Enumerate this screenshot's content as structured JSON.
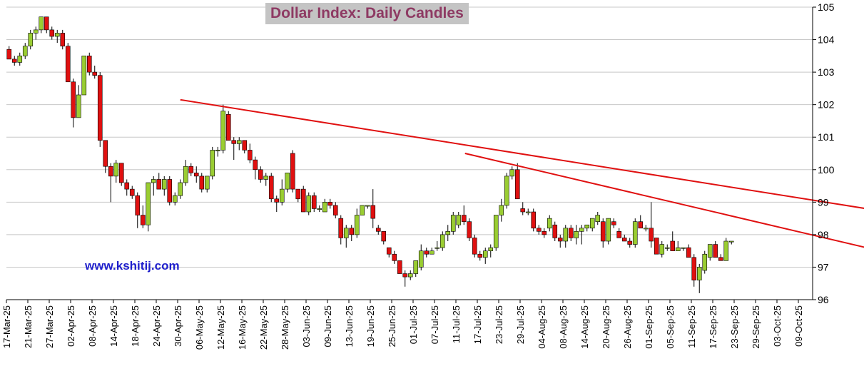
{
  "chart_data": {
    "type": "candlestick",
    "title": "Dollar Index: Daily Candles",
    "watermark": "www.kshitij.com",
    "ylim": [
      96,
      105
    ],
    "y_ticks": [
      96,
      97,
      98,
      99,
      100,
      101,
      102,
      103,
      104,
      105
    ],
    "y_axis_side": "right",
    "grid": "horizontal",
    "x_tick_labels": [
      "17-Mar-25",
      "21-Mar-25",
      "27-Mar-25",
      "02-Apr-25",
      "08-Apr-25",
      "14-Apr-25",
      "18-Apr-25",
      "24-Apr-25",
      "30-Apr-25",
      "06-May-25",
      "12-May-25",
      "16-May-25",
      "22-May-25",
      "28-May-25",
      "03-Jun-25",
      "09-Jun-25",
      "13-Jun-25",
      "19-Jun-25",
      "25-Jun-25",
      "01-Jul-25",
      "07-Jul-25",
      "11-Jul-25",
      "17-Jul-25",
      "23-Jul-25",
      "29-Jul-25",
      "04-Aug-25",
      "08-Aug-25",
      "14-Aug-25",
      "20-Aug-25",
      "26-Aug-25",
      "01-Sep-25",
      "05-Sep-25",
      "11-Sep-25",
      "17-Sep-25",
      "23-Sep-25",
      "29-Sep-25",
      "03-Oct-25",
      "09-Oct-25"
    ],
    "up_color": "#9acd32",
    "down_color": "#e01010",
    "trendline_color": "#e01010",
    "candles": [
      {
        "o": 103.7,
        "h": 103.8,
        "l": 103.4,
        "c": 103.4
      },
      {
        "o": 103.4,
        "h": 103.5,
        "l": 103.2,
        "c": 103.3
      },
      {
        "o": 103.3,
        "h": 103.6,
        "l": 103.2,
        "c": 103.5
      },
      {
        "o": 103.5,
        "h": 103.9,
        "l": 103.4,
        "c": 103.8
      },
      {
        "o": 103.8,
        "h": 104.3,
        "l": 103.7,
        "c": 104.2
      },
      {
        "o": 104.2,
        "h": 104.4,
        "l": 104.0,
        "c": 104.3
      },
      {
        "o": 104.3,
        "h": 104.7,
        "l": 104.2,
        "c": 104.7
      },
      {
        "o": 104.7,
        "h": 104.7,
        "l": 104.2,
        "c": 104.3
      },
      {
        "o": 104.3,
        "h": 104.4,
        "l": 104.0,
        "c": 104.1
      },
      {
        "o": 104.1,
        "h": 104.3,
        "l": 103.9,
        "c": 104.2
      },
      {
        "o": 104.2,
        "h": 104.3,
        "l": 103.7,
        "c": 103.8
      },
      {
        "o": 103.8,
        "h": 103.9,
        "l": 102.7,
        "c": 102.7
      },
      {
        "o": 102.7,
        "h": 102.8,
        "l": 101.3,
        "c": 101.6
      },
      {
        "o": 101.6,
        "h": 102.6,
        "l": 101.6,
        "c": 102.3
      },
      {
        "o": 102.3,
        "h": 103.5,
        "l": 102.3,
        "c": 103.5
      },
      {
        "o": 103.5,
        "h": 103.6,
        "l": 102.9,
        "c": 103.0
      },
      {
        "o": 103.0,
        "h": 103.2,
        "l": 102.8,
        "c": 102.9
      },
      {
        "o": 102.9,
        "h": 103.0,
        "l": 100.7,
        "c": 100.9
      },
      {
        "o": 100.9,
        "h": 100.9,
        "l": 99.9,
        "c": 100.1
      },
      {
        "o": 100.1,
        "h": 100.2,
        "l": 99.0,
        "c": 99.8
      },
      {
        "o": 99.8,
        "h": 100.3,
        "l": 99.6,
        "c": 100.2
      },
      {
        "o": 100.2,
        "h": 100.2,
        "l": 99.5,
        "c": 99.6
      },
      {
        "o": 99.6,
        "h": 99.7,
        "l": 99.2,
        "c": 99.4
      },
      {
        "o": 99.4,
        "h": 99.5,
        "l": 99.1,
        "c": 99.2
      },
      {
        "o": 99.2,
        "h": 99.3,
        "l": 98.2,
        "c": 98.6
      },
      {
        "o": 98.6,
        "h": 98.9,
        "l": 98.2,
        "c": 98.3
      },
      {
        "o": 98.3,
        "h": 99.6,
        "l": 98.1,
        "c": 99.6
      },
      {
        "o": 99.6,
        "h": 99.8,
        "l": 99.2,
        "c": 99.7
      },
      {
        "o": 99.7,
        "h": 99.9,
        "l": 99.4,
        "c": 99.4
      },
      {
        "o": 99.4,
        "h": 99.8,
        "l": 99.2,
        "c": 99.7
      },
      {
        "o": 99.7,
        "h": 99.8,
        "l": 98.9,
        "c": 99.0
      },
      {
        "o": 99.0,
        "h": 99.3,
        "l": 98.9,
        "c": 99.2
      },
      {
        "o": 99.2,
        "h": 99.7,
        "l": 99.1,
        "c": 99.6
      },
      {
        "o": 99.6,
        "h": 100.3,
        "l": 99.5,
        "c": 100.1
      },
      {
        "o": 100.1,
        "h": 100.2,
        "l": 99.8,
        "c": 99.9
      },
      {
        "o": 99.9,
        "h": 100.1,
        "l": 99.6,
        "c": 99.8
      },
      {
        "o": 99.8,
        "h": 99.9,
        "l": 99.3,
        "c": 99.4
      },
      {
        "o": 99.4,
        "h": 99.8,
        "l": 99.3,
        "c": 99.8
      },
      {
        "o": 99.8,
        "h": 100.7,
        "l": 99.7,
        "c": 100.6
      },
      {
        "o": 100.6,
        "h": 100.7,
        "l": 100.4,
        "c": 100.6
      },
      {
        "o": 100.6,
        "h": 102.0,
        "l": 100.5,
        "c": 101.8
      },
      {
        "o": 101.7,
        "h": 101.8,
        "l": 100.9,
        "c": 100.9
      },
      {
        "o": 100.9,
        "h": 101.0,
        "l": 100.3,
        "c": 100.8
      },
      {
        "o": 100.8,
        "h": 101.0,
        "l": 100.6,
        "c": 100.9
      },
      {
        "o": 100.9,
        "h": 100.9,
        "l": 100.5,
        "c": 100.6
      },
      {
        "o": 100.6,
        "h": 100.8,
        "l": 100.2,
        "c": 100.3
      },
      {
        "o": 100.3,
        "h": 100.4,
        "l": 99.7,
        "c": 100.0
      },
      {
        "o": 100.0,
        "h": 100.1,
        "l": 99.6,
        "c": 99.7
      },
      {
        "o": 99.7,
        "h": 99.9,
        "l": 99.5,
        "c": 99.8
      },
      {
        "o": 99.8,
        "h": 99.9,
        "l": 99.0,
        "c": 99.1
      },
      {
        "o": 99.1,
        "h": 99.2,
        "l": 98.7,
        "c": 99.0
      },
      {
        "o": 99.0,
        "h": 99.7,
        "l": 98.9,
        "c": 99.4
      },
      {
        "o": 99.4,
        "h": 99.9,
        "l": 99.3,
        "c": 99.9
      },
      {
        "o": 100.5,
        "h": 100.6,
        "l": 99.3,
        "c": 99.4
      },
      {
        "o": 99.4,
        "h": 99.4,
        "l": 99.0,
        "c": 99.1
      },
      {
        "o": 99.4,
        "h": 99.5,
        "l": 98.7,
        "c": 98.7
      },
      {
        "o": 98.7,
        "h": 99.3,
        "l": 98.6,
        "c": 99.2
      },
      {
        "o": 99.2,
        "h": 99.3,
        "l": 98.7,
        "c": 98.8
      },
      {
        "o": 98.8,
        "h": 98.9,
        "l": 98.7,
        "c": 98.8
      },
      {
        "o": 98.7,
        "h": 99.1,
        "l": 98.7,
        "c": 99.0
      },
      {
        "o": 99.0,
        "h": 99.1,
        "l": 98.8,
        "c": 98.9
      },
      {
        "o": 98.9,
        "h": 99.0,
        "l": 98.5,
        "c": 98.6
      },
      {
        "o": 98.5,
        "h": 98.6,
        "l": 97.7,
        "c": 97.9
      },
      {
        "o": 97.9,
        "h": 98.3,
        "l": 97.6,
        "c": 98.2
      },
      {
        "o": 98.2,
        "h": 98.3,
        "l": 97.8,
        "c": 98.0
      },
      {
        "o": 98.0,
        "h": 98.8,
        "l": 97.9,
        "c": 98.6
      },
      {
        "o": 98.6,
        "h": 98.9,
        "l": 98.6,
        "c": 98.9
      },
      {
        "o": 98.9,
        "h": 98.9,
        "l": 98.8,
        "c": 98.9
      },
      {
        "o": 98.9,
        "h": 99.4,
        "l": 98.2,
        "c": 98.5
      },
      {
        "o": 98.2,
        "h": 98.3,
        "l": 98.0,
        "c": 98.1
      },
      {
        "o": 98.1,
        "h": 98.1,
        "l": 97.7,
        "c": 97.8
      },
      {
        "o": 97.6,
        "h": 97.6,
        "l": 97.3,
        "c": 97.4
      },
      {
        "o": 97.4,
        "h": 97.5,
        "l": 97.1,
        "c": 97.2
      },
      {
        "o": 97.2,
        "h": 97.2,
        "l": 96.8,
        "c": 96.8
      },
      {
        "o": 96.8,
        "h": 96.9,
        "l": 96.4,
        "c": 96.7
      },
      {
        "o": 96.7,
        "h": 96.9,
        "l": 96.6,
        "c": 96.8
      },
      {
        "o": 96.8,
        "h": 97.2,
        "l": 96.7,
        "c": 97.2
      },
      {
        "o": 97.0,
        "h": 97.7,
        "l": 96.9,
        "c": 97.5
      },
      {
        "o": 97.5,
        "h": 97.6,
        "l": 97.3,
        "c": 97.4
      },
      {
        "o": 97.4,
        "h": 97.6,
        "l": 97.4,
        "c": 97.5
      },
      {
        "o": 97.6,
        "h": 97.8,
        "l": 97.5,
        "c": 97.6
      },
      {
        "o": 97.6,
        "h": 98.1,
        "l": 97.5,
        "c": 98.0
      },
      {
        "o": 98.0,
        "h": 98.3,
        "l": 97.8,
        "c": 98.1
      },
      {
        "o": 98.1,
        "h": 98.7,
        "l": 98.0,
        "c": 98.6
      },
      {
        "o": 98.3,
        "h": 98.7,
        "l": 98.2,
        "c": 98.6
      },
      {
        "o": 98.6,
        "h": 98.9,
        "l": 98.3,
        "c": 98.4
      },
      {
        "o": 98.4,
        "h": 98.5,
        "l": 97.8,
        "c": 97.9
      },
      {
        "o": 97.9,
        "h": 98.0,
        "l": 97.3,
        "c": 97.4
      },
      {
        "o": 97.4,
        "h": 97.5,
        "l": 97.2,
        "c": 97.3
      },
      {
        "o": 97.3,
        "h": 97.6,
        "l": 97.1,
        "c": 97.5
      },
      {
        "o": 97.5,
        "h": 97.7,
        "l": 97.3,
        "c": 97.6
      },
      {
        "o": 97.6,
        "h": 98.6,
        "l": 97.5,
        "c": 98.6
      },
      {
        "o": 98.6,
        "h": 99.1,
        "l": 98.4,
        "c": 98.9
      },
      {
        "o": 98.9,
        "h": 99.9,
        "l": 98.8,
        "c": 99.8
      },
      {
        "o": 99.8,
        "h": 100.1,
        "l": 99.7,
        "c": 100.0
      },
      {
        "o": 100.0,
        "h": 100.2,
        "l": 99.1,
        "c": 99.1
      },
      {
        "o": 98.8,
        "h": 99.0,
        "l": 98.6,
        "c": 98.7
      },
      {
        "o": 98.7,
        "h": 98.8,
        "l": 98.6,
        "c": 98.7
      },
      {
        "o": 98.7,
        "h": 98.8,
        "l": 98.1,
        "c": 98.2
      },
      {
        "o": 98.2,
        "h": 98.3,
        "l": 98.0,
        "c": 98.1
      },
      {
        "o": 98.1,
        "h": 98.2,
        "l": 97.9,
        "c": 98.0
      },
      {
        "o": 98.2,
        "h": 98.6,
        "l": 98.1,
        "c": 98.5
      },
      {
        "o": 98.3,
        "h": 98.4,
        "l": 97.8,
        "c": 97.9
      },
      {
        "o": 97.9,
        "h": 98.0,
        "l": 97.6,
        "c": 97.8
      },
      {
        "o": 97.8,
        "h": 98.3,
        "l": 97.6,
        "c": 98.2
      },
      {
        "o": 98.2,
        "h": 98.3,
        "l": 97.8,
        "c": 97.9
      },
      {
        "o": 97.9,
        "h": 98.3,
        "l": 97.7,
        "c": 98.1
      },
      {
        "o": 98.1,
        "h": 98.3,
        "l": 97.7,
        "c": 98.2
      },
      {
        "o": 98.2,
        "h": 98.3,
        "l": 98.1,
        "c": 98.3
      },
      {
        "o": 98.2,
        "h": 98.5,
        "l": 98.1,
        "c": 98.5
      },
      {
        "o": 98.4,
        "h": 98.7,
        "l": 98.3,
        "c": 98.6
      },
      {
        "o": 98.4,
        "h": 98.5,
        "l": 97.6,
        "c": 97.8
      },
      {
        "o": 97.8,
        "h": 98.5,
        "l": 97.7,
        "c": 98.5
      },
      {
        "o": 98.4,
        "h": 98.5,
        "l": 98.2,
        "c": 98.3
      },
      {
        "o": 98.1,
        "h": 98.2,
        "l": 97.9,
        "c": 97.9
      },
      {
        "o": 97.9,
        "h": 98.0,
        "l": 97.8,
        "c": 97.8
      },
      {
        "o": 97.8,
        "h": 97.9,
        "l": 97.6,
        "c": 97.7
      },
      {
        "o": 97.7,
        "h": 98.5,
        "l": 97.6,
        "c": 98.4
      },
      {
        "o": 98.4,
        "h": 98.6,
        "l": 98.2,
        "c": 98.2
      },
      {
        "o": 98.2,
        "h": 98.3,
        "l": 98.1,
        "c": 98.2
      },
      {
        "o": 98.2,
        "h": 99.0,
        "l": 97.6,
        "c": 97.8
      },
      {
        "o": 97.9,
        "h": 97.9,
        "l": 97.4,
        "c": 97.4
      },
      {
        "o": 97.4,
        "h": 97.8,
        "l": 97.3,
        "c": 97.7
      },
      {
        "o": 97.6,
        "h": 97.7,
        "l": 97.5,
        "c": 97.6
      },
      {
        "o": 97.8,
        "h": 98.1,
        "l": 97.5,
        "c": 97.5
      },
      {
        "o": 97.5,
        "h": 97.8,
        "l": 97.5,
        "c": 97.6
      },
      {
        "o": 97.6,
        "h": 97.6,
        "l": 97.5,
        "c": 97.6
      },
      {
        "o": 97.6,
        "h": 97.7,
        "l": 97.3,
        "c": 97.3
      },
      {
        "o": 97.3,
        "h": 97.4,
        "l": 96.4,
        "c": 96.6
      },
      {
        "o": 96.6,
        "h": 97.1,
        "l": 96.2,
        "c": 97.0
      },
      {
        "o": 96.9,
        "h": 97.5,
        "l": 96.8,
        "c": 97.4
      },
      {
        "o": 97.3,
        "h": 97.7,
        "l": 97.2,
        "c": 97.7
      },
      {
        "o": 97.7,
        "h": 97.8,
        "l": 97.3,
        "c": 97.3
      },
      {
        "o": 97.3,
        "h": 97.4,
        "l": 97.2,
        "c": 97.2
      },
      {
        "o": 97.2,
        "h": 97.9,
        "l": 97.2,
        "c": 97.8
      },
      {
        "o": 97.8,
        "h": 97.8,
        "l": 97.7,
        "c": 97.8
      }
    ],
    "trendlines": [
      {
        "x1": 32,
        "y1": 102.15,
        "x2": 160.2,
        "y2": 98.8
      },
      {
        "x1": 85.2,
        "y1": 100.5,
        "x2": 160.2,
        "y2": 97.6
      }
    ]
  }
}
